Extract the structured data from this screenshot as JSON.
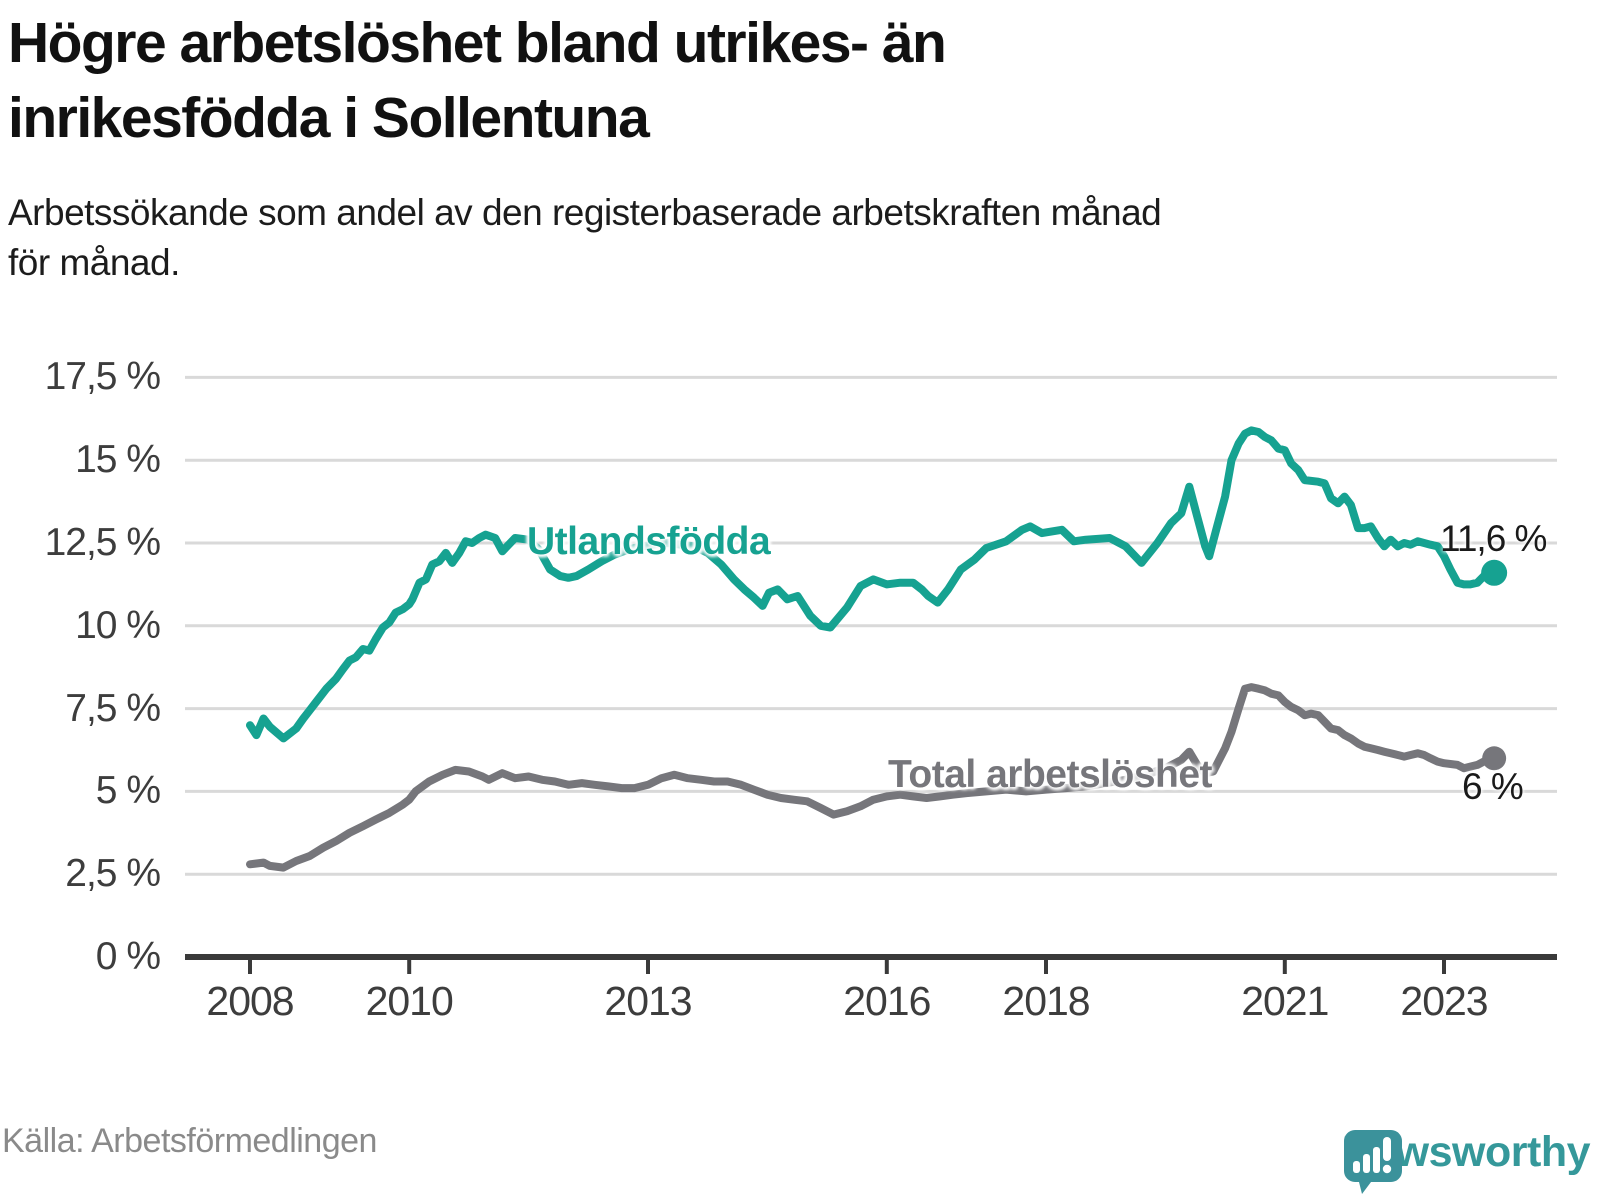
{
  "header": {
    "title_line1": "Högre arbetslöshet bland utrikes- än",
    "title_line2": "inrikesfödda i Sollentuna",
    "subtitle_line1": "Arbetssökande som andel av den registerbaserade arbetskraften månad",
    "subtitle_line2": "för månad."
  },
  "footer": {
    "source": "Källa: Arbetsförmedlingen",
    "brand": "Newsworthy",
    "brand_color": "#35989a",
    "logo_bubble_color": "#3b929b"
  },
  "chart_data": {
    "type": "line",
    "title": "Högre arbetslöshet bland utrikes- än inrikesfödda i Sollentuna",
    "subtitle": "Arbetssökande som andel av den registerbaserade arbetskraften månad för månad.",
    "unit": "%",
    "grid": "horizontal",
    "gridline_color": "#d9d9d9",
    "axis_color": "#3a3a3a",
    "xlabel": "",
    "ylabel": "",
    "ylim": [
      0,
      18.6
    ],
    "y_ticks": [
      {
        "value": 0,
        "label": "0 %"
      },
      {
        "value": 2.5,
        "label": "2,5 %"
      },
      {
        "value": 5,
        "label": "5 %"
      },
      {
        "value": 7.5,
        "label": "7,5 %"
      },
      {
        "value": 10,
        "label": "10 %"
      },
      {
        "value": 12.5,
        "label": "12,5 %"
      },
      {
        "value": 15,
        "label": "15 %"
      },
      {
        "value": 17.5,
        "label": "17,5 %"
      }
    ],
    "x_ticks": [
      {
        "year": 2008,
        "label": "2008"
      },
      {
        "year": 2010,
        "label": "2010"
      },
      {
        "year": 2013,
        "label": "2013"
      },
      {
        "year": 2016,
        "label": "2016"
      },
      {
        "year": 2018,
        "label": "2018"
      },
      {
        "year": 2021,
        "label": "2021"
      },
      {
        "year": 2023,
        "label": "2023"
      }
    ],
    "series": [
      {
        "name": "Utlandsfödda",
        "color": "#16a291",
        "end_label": "11,6 %",
        "end_value": 11.6,
        "points": [
          [
            2008.0,
            7.0
          ],
          [
            2008.08,
            6.7
          ],
          [
            2008.17,
            7.2
          ],
          [
            2008.25,
            6.95
          ],
          [
            2008.42,
            6.6
          ],
          [
            2008.58,
            6.9
          ],
          [
            2008.67,
            7.2
          ],
          [
            2008.75,
            7.45
          ],
          [
            2008.83,
            7.7
          ],
          [
            2008.96,
            8.1
          ],
          [
            2009.08,
            8.4
          ],
          [
            2009.17,
            8.7
          ],
          [
            2009.25,
            8.95
          ],
          [
            2009.33,
            9.05
          ],
          [
            2009.42,
            9.3
          ],
          [
            2009.5,
            9.25
          ],
          [
            2009.58,
            9.6
          ],
          [
            2009.67,
            9.95
          ],
          [
            2009.75,
            10.1
          ],
          [
            2009.83,
            10.4
          ],
          [
            2009.92,
            10.5
          ],
          [
            2010.0,
            10.65
          ],
          [
            2010.04,
            10.8
          ],
          [
            2010.13,
            11.3
          ],
          [
            2010.21,
            11.4
          ],
          [
            2010.29,
            11.85
          ],
          [
            2010.38,
            11.95
          ],
          [
            2010.46,
            12.2
          ],
          [
            2010.54,
            11.9
          ],
          [
            2010.63,
            12.2
          ],
          [
            2010.71,
            12.55
          ],
          [
            2010.79,
            12.5
          ],
          [
            2010.88,
            12.65
          ],
          [
            2010.96,
            12.75
          ],
          [
            2011.08,
            12.65
          ],
          [
            2011.17,
            12.25
          ],
          [
            2011.33,
            12.65
          ],
          [
            2011.5,
            12.6
          ],
          [
            2011.63,
            12.3
          ],
          [
            2011.77,
            11.7
          ],
          [
            2011.9,
            11.5
          ],
          [
            2012.0,
            11.45
          ],
          [
            2012.1,
            11.5
          ],
          [
            2012.25,
            11.7
          ],
          [
            2012.42,
            11.95
          ],
          [
            2012.58,
            12.15
          ],
          [
            2012.75,
            12.3
          ],
          [
            2012.92,
            12.4
          ],
          [
            2013.08,
            12.45
          ],
          [
            2013.25,
            12.5
          ],
          [
            2013.42,
            12.45
          ],
          [
            2013.58,
            12.4
          ],
          [
            2013.75,
            12.2
          ],
          [
            2013.92,
            11.85
          ],
          [
            2014.08,
            11.4
          ],
          [
            2014.21,
            11.1
          ],
          [
            2014.33,
            10.85
          ],
          [
            2014.44,
            10.6
          ],
          [
            2014.52,
            11.0
          ],
          [
            2014.63,
            11.1
          ],
          [
            2014.75,
            10.8
          ],
          [
            2014.88,
            10.9
          ],
          [
            2015.04,
            10.3
          ],
          [
            2015.17,
            10.0
          ],
          [
            2015.29,
            9.95
          ],
          [
            2015.5,
            10.55
          ],
          [
            2015.67,
            11.2
          ],
          [
            2015.83,
            11.4
          ],
          [
            2016.0,
            11.25
          ],
          [
            2016.17,
            11.3
          ],
          [
            2016.33,
            11.3
          ],
          [
            2016.44,
            11.1
          ],
          [
            2016.52,
            10.9
          ],
          [
            2016.64,
            10.7
          ],
          [
            2016.77,
            11.1
          ],
          [
            2016.93,
            11.7
          ],
          [
            2017.1,
            12.0
          ],
          [
            2017.25,
            12.35
          ],
          [
            2017.5,
            12.55
          ],
          [
            2017.7,
            12.9
          ],
          [
            2017.8,
            13.0
          ],
          [
            2017.95,
            12.8
          ],
          [
            2018.2,
            12.9
          ],
          [
            2018.35,
            12.55
          ],
          [
            2018.5,
            12.6
          ],
          [
            2018.8,
            12.65
          ],
          [
            2019.0,
            12.4
          ],
          [
            2019.1,
            12.15
          ],
          [
            2019.2,
            11.9
          ],
          [
            2019.4,
            12.5
          ],
          [
            2019.57,
            13.1
          ],
          [
            2019.7,
            13.4
          ],
          [
            2019.8,
            14.2
          ],
          [
            2019.9,
            13.3
          ],
          [
            2020.0,
            12.4
          ],
          [
            2020.05,
            12.1
          ],
          [
            2020.15,
            13.0
          ],
          [
            2020.25,
            13.9
          ],
          [
            2020.33,
            15.0
          ],
          [
            2020.42,
            15.5
          ],
          [
            2020.5,
            15.8
          ],
          [
            2020.58,
            15.9
          ],
          [
            2020.67,
            15.85
          ],
          [
            2020.75,
            15.7
          ],
          [
            2020.83,
            15.6
          ],
          [
            2020.92,
            15.35
          ],
          [
            2021.0,
            15.3
          ],
          [
            2021.08,
            14.9
          ],
          [
            2021.17,
            14.7
          ],
          [
            2021.25,
            14.4
          ],
          [
            2021.42,
            14.35
          ],
          [
            2021.5,
            14.3
          ],
          [
            2021.58,
            13.85
          ],
          [
            2021.67,
            13.7
          ],
          [
            2021.75,
            13.9
          ],
          [
            2021.83,
            13.65
          ],
          [
            2021.92,
            12.95
          ],
          [
            2022.0,
            12.95
          ],
          [
            2022.08,
            13.0
          ],
          [
            2022.17,
            12.65
          ],
          [
            2022.25,
            12.4
          ],
          [
            2022.33,
            12.6
          ],
          [
            2022.42,
            12.4
          ],
          [
            2022.5,
            12.5
          ],
          [
            2022.58,
            12.45
          ],
          [
            2022.67,
            12.55
          ],
          [
            2022.75,
            12.5
          ],
          [
            2022.83,
            12.45
          ],
          [
            2022.92,
            12.4
          ],
          [
            2023.0,
            12.1
          ],
          [
            2023.08,
            11.7
          ],
          [
            2023.17,
            11.3
          ],
          [
            2023.25,
            11.25
          ],
          [
            2023.33,
            11.25
          ],
          [
            2023.42,
            11.3
          ],
          [
            2023.5,
            11.5
          ],
          [
            2023.63,
            11.6
          ]
        ]
      },
      {
        "name": "Total arbetslöshet",
        "color": "#76767b",
        "end_label": "6 %",
        "end_value": 6.0,
        "points": [
          [
            2008.0,
            2.8
          ],
          [
            2008.17,
            2.85
          ],
          [
            2008.25,
            2.75
          ],
          [
            2008.42,
            2.7
          ],
          [
            2008.58,
            2.9
          ],
          [
            2008.75,
            3.05
          ],
          [
            2008.92,
            3.3
          ],
          [
            2009.08,
            3.5
          ],
          [
            2009.25,
            3.75
          ],
          [
            2009.42,
            3.95
          ],
          [
            2009.58,
            4.15
          ],
          [
            2009.75,
            4.35
          ],
          [
            2009.92,
            4.6
          ],
          [
            2010.0,
            4.75
          ],
          [
            2010.08,
            5.0
          ],
          [
            2010.25,
            5.3
          ],
          [
            2010.42,
            5.5
          ],
          [
            2010.58,
            5.65
          ],
          [
            2010.75,
            5.6
          ],
          [
            2010.92,
            5.45
          ],
          [
            2011.0,
            5.35
          ],
          [
            2011.17,
            5.55
          ],
          [
            2011.33,
            5.4
          ],
          [
            2011.5,
            5.45
          ],
          [
            2011.67,
            5.35
          ],
          [
            2011.83,
            5.3
          ],
          [
            2012.0,
            5.2
          ],
          [
            2012.17,
            5.25
          ],
          [
            2012.33,
            5.2
          ],
          [
            2012.5,
            5.15
          ],
          [
            2012.67,
            5.1
          ],
          [
            2012.83,
            5.1
          ],
          [
            2013.0,
            5.2
          ],
          [
            2013.17,
            5.4
          ],
          [
            2013.33,
            5.5
          ],
          [
            2013.5,
            5.4
          ],
          [
            2013.67,
            5.35
          ],
          [
            2013.83,
            5.3
          ],
          [
            2014.0,
            5.3
          ],
          [
            2014.17,
            5.2
          ],
          [
            2014.33,
            5.05
          ],
          [
            2014.5,
            4.9
          ],
          [
            2014.67,
            4.8
          ],
          [
            2014.83,
            4.75
          ],
          [
            2015.0,
            4.7
          ],
          [
            2015.17,
            4.5
          ],
          [
            2015.33,
            4.3
          ],
          [
            2015.5,
            4.4
          ],
          [
            2015.67,
            4.55
          ],
          [
            2015.83,
            4.75
          ],
          [
            2016.0,
            4.85
          ],
          [
            2016.17,
            4.9
          ],
          [
            2016.33,
            4.85
          ],
          [
            2016.5,
            4.8
          ],
          [
            2016.67,
            4.85
          ],
          [
            2016.83,
            4.9
          ],
          [
            2017.0,
            4.95
          ],
          [
            2017.25,
            5.0
          ],
          [
            2017.5,
            5.05
          ],
          [
            2017.75,
            5.0
          ],
          [
            2018.0,
            5.05
          ],
          [
            2018.25,
            5.1
          ],
          [
            2018.5,
            5.15
          ],
          [
            2018.75,
            5.25
          ],
          [
            2019.0,
            5.35
          ],
          [
            2019.25,
            5.5
          ],
          [
            2019.5,
            5.7
          ],
          [
            2019.7,
            5.95
          ],
          [
            2019.8,
            6.2
          ],
          [
            2019.9,
            5.8
          ],
          [
            2020.0,
            5.55
          ],
          [
            2020.1,
            5.6
          ],
          [
            2020.25,
            6.3
          ],
          [
            2020.33,
            6.8
          ],
          [
            2020.42,
            7.5
          ],
          [
            2020.5,
            8.1
          ],
          [
            2020.58,
            8.15
          ],
          [
            2020.67,
            8.1
          ],
          [
            2020.75,
            8.05
          ],
          [
            2020.83,
            7.95
          ],
          [
            2020.92,
            7.9
          ],
          [
            2021.0,
            7.7
          ],
          [
            2021.08,
            7.55
          ],
          [
            2021.17,
            7.45
          ],
          [
            2021.25,
            7.3
          ],
          [
            2021.33,
            7.35
          ],
          [
            2021.42,
            7.3
          ],
          [
            2021.5,
            7.1
          ],
          [
            2021.58,
            6.9
          ],
          [
            2021.67,
            6.85
          ],
          [
            2021.75,
            6.7
          ],
          [
            2021.83,
            6.6
          ],
          [
            2021.92,
            6.45
          ],
          [
            2022.0,
            6.35
          ],
          [
            2022.08,
            6.3
          ],
          [
            2022.17,
            6.25
          ],
          [
            2022.25,
            6.2
          ],
          [
            2022.33,
            6.15
          ],
          [
            2022.42,
            6.1
          ],
          [
            2022.5,
            6.05
          ],
          [
            2022.58,
            6.1
          ],
          [
            2022.67,
            6.15
          ],
          [
            2022.75,
            6.1
          ],
          [
            2022.83,
            6.0
          ],
          [
            2022.92,
            5.9
          ],
          [
            2023.0,
            5.85
          ],
          [
            2023.17,
            5.8
          ],
          [
            2023.25,
            5.7
          ],
          [
            2023.33,
            5.75
          ],
          [
            2023.42,
            5.8
          ],
          [
            2023.5,
            5.9
          ],
          [
            2023.63,
            6.0
          ]
        ]
      }
    ]
  }
}
